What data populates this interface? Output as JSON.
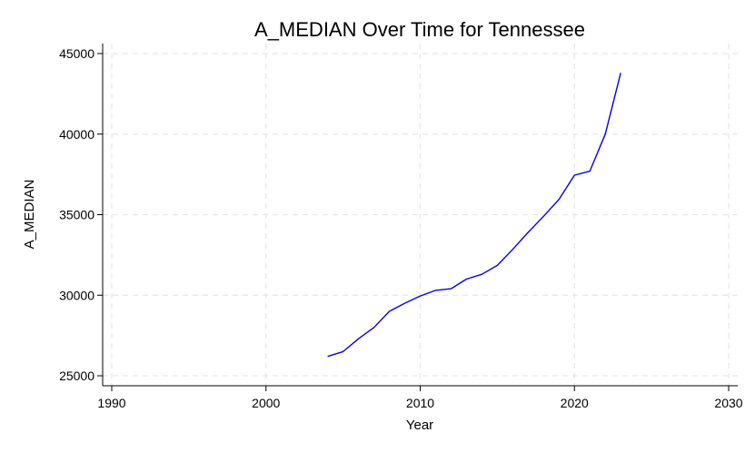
{
  "chart_data": {
    "type": "line",
    "title": "A_MEDIAN Over Time for Tennessee",
    "xlabel": "Year",
    "ylabel": "A_MEDIAN",
    "xlim": [
      1990,
      2030
    ],
    "ylim": [
      25000,
      45000
    ],
    "x_ticks": [
      1990,
      2000,
      2010,
      2020,
      2030
    ],
    "y_ticks": [
      25000,
      30000,
      35000,
      40000,
      45000
    ],
    "grid": true,
    "line_color": "#0000ee",
    "series": [
      {
        "x": [
          2004,
          2005,
          2006,
          2007,
          2008,
          2009,
          2010,
          2011,
          2012,
          2013,
          2014,
          2015,
          2016,
          2017,
          2018,
          2019,
          2020,
          2021,
          2022,
          2023
        ],
        "y": [
          26200,
          26500,
          27300,
          28000,
          29000,
          29500,
          29950,
          30300,
          30400,
          31000,
          31300,
          31850,
          32850,
          33900,
          34900,
          35950,
          37450,
          37700,
          40000,
          43800
        ]
      }
    ]
  }
}
